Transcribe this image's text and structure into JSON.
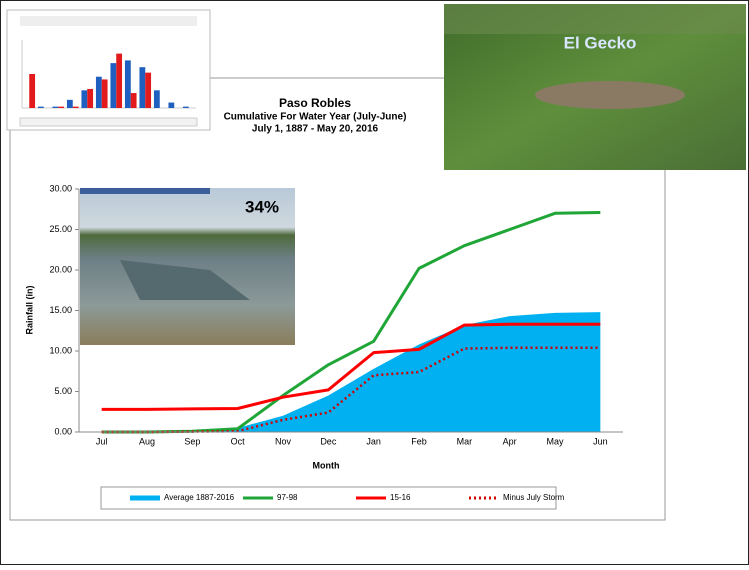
{
  "chart_data": [
    {
      "type": "line",
      "title": "Paso Robles",
      "subtitle": [
        "Cumulative For Water Year (July-June)",
        "July 1, 1887 - May 20, 2016"
      ],
      "x_label": "Month",
      "y_label": "Rainfall (in)",
      "categories": [
        "Jul",
        "Aug",
        "Sep",
        "Oct",
        "Nov",
        "Dec",
        "Jan",
        "Feb",
        "Mar",
        "Apr",
        "May",
        "Jun"
      ],
      "series": [
        {
          "name": "Average 1887-2016",
          "color": "#00b0f0",
          "style": "area",
          "values": [
            0,
            0.05,
            0.1,
            0.5,
            2,
            4.5,
            7.8,
            10.8,
            13.2,
            14.3,
            14.7,
            14.8
          ]
        },
        {
          "name": "97-98",
          "color": "#1fa637",
          "style": "solid",
          "values": [
            0,
            0,
            0.1,
            0.4,
            4.5,
            8.3,
            11.2,
            20.2,
            23,
            25,
            27,
            27.1
          ]
        },
        {
          "name": "15-16",
          "color": "#ff0000",
          "style": "solid",
          "values": [
            2.8,
            2.8,
            2.85,
            2.9,
            4.3,
            5.2,
            9.8,
            10.2,
            13.2,
            13.3,
            13.3,
            13.3
          ]
        },
        {
          "name": "Minus July Storm",
          "color": "#d00000",
          "style": "dotted",
          "values": [
            0,
            0,
            0.05,
            0.1,
            1.5,
            2.4,
            7,
            7.4,
            10.3,
            10.4,
            10.4,
            10.4
          ]
        }
      ],
      "ylim": [
        0,
        30
      ],
      "yticks": [
        {
          "value": 0,
          "label": "0.00"
        },
        {
          "value": 5,
          "label": "5.00"
        },
        {
          "value": 10,
          "label": "10.00"
        },
        {
          "value": 15,
          "label": "15.00"
        },
        {
          "value": 20,
          "label": "20.00"
        },
        {
          "value": 25,
          "label": "25.00"
        },
        {
          "value": 30,
          "label": "30.00"
        }
      ],
      "legend": "bottom"
    },
    {
      "type": "bar",
      "categories": [
        null,
        null,
        null,
        null,
        null,
        null,
        null,
        null,
        null,
        null,
        null,
        null
      ],
      "series": [
        {
          "color": "#1f5fbf",
          "values": [
            0,
            0.1,
            0.1,
            0.6,
            1.3,
            2.3,
            3.3,
            3.5,
            3,
            1.3,
            0.4,
            0.1
          ]
        },
        {
          "color": "#e31a1c",
          "values": [
            2.5,
            0,
            0.1,
            0.1,
            1.4,
            2.1,
            4,
            1.1,
            2.6,
            0,
            0,
            0
          ]
        }
      ],
      "ylim": [
        0,
        5
      ]
    }
  ],
  "overlays": {
    "lake_caption": "34%",
    "gecko_caption": "El Gecko"
  }
}
